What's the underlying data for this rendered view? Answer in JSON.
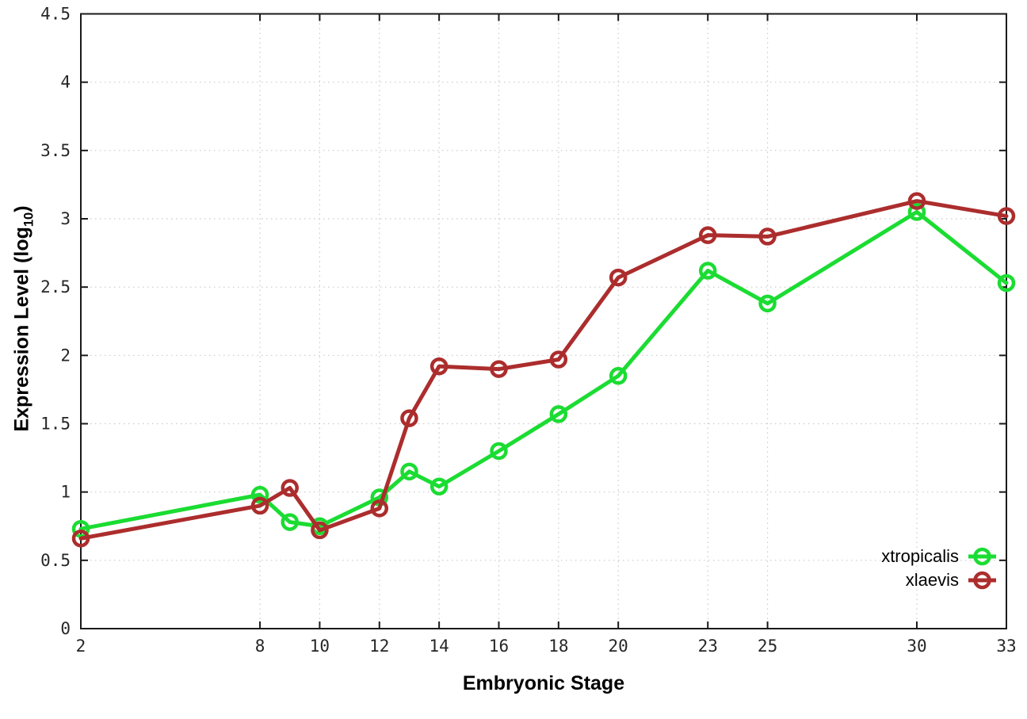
{
  "figure": {
    "background": "#ffffff",
    "xlabel": "Embryonic Stage",
    "ylabel": {
      "prefix": "Expression Level (log",
      "sub": "10",
      "suffix": ")"
    }
  },
  "chart_data": {
    "type": "line",
    "title": "",
    "xlabel": "Embryonic Stage",
    "ylabel": "Expression Level (log10)",
    "x": [
      2,
      8,
      9,
      10,
      12,
      13,
      14,
      16,
      18,
      20,
      23,
      25,
      30,
      33
    ],
    "series": [
      {
        "name": "xtropicalis",
        "color": "#1bdc32",
        "marker": "open-circle",
        "values": [
          0.73,
          0.98,
          0.78,
          0.75,
          0.96,
          1.15,
          1.04,
          1.3,
          1.57,
          1.85,
          2.62,
          2.38,
          3.05,
          2.53
        ]
      },
      {
        "name": "xlaevis",
        "color": "#ac2d2d",
        "marker": "open-circle",
        "values": [
          0.66,
          0.9,
          1.03,
          0.72,
          0.88,
          1.54,
          1.92,
          1.9,
          1.97,
          2.57,
          2.88,
          2.87,
          3.13,
          3.02
        ]
      }
    ],
    "xticks": [
      2,
      8,
      10,
      12,
      14,
      16,
      18,
      20,
      23,
      25,
      30,
      33
    ],
    "yticks": [
      0,
      0.5,
      1,
      1.5,
      2,
      2.5,
      3,
      3.5,
      4,
      4.5
    ],
    "xlim": [
      2,
      33
    ],
    "ylim": [
      0,
      4.5
    ],
    "grid": "dotted",
    "grid_on": true,
    "legend_position": "inside-bottom-right",
    "legend": [
      "xtropicalis",
      "xlaevis"
    ]
  },
  "style": {
    "grid_color": "#c9c9c9",
    "axis_color": "#1a1a1a",
    "tick_label_color": "#262626"
  }
}
